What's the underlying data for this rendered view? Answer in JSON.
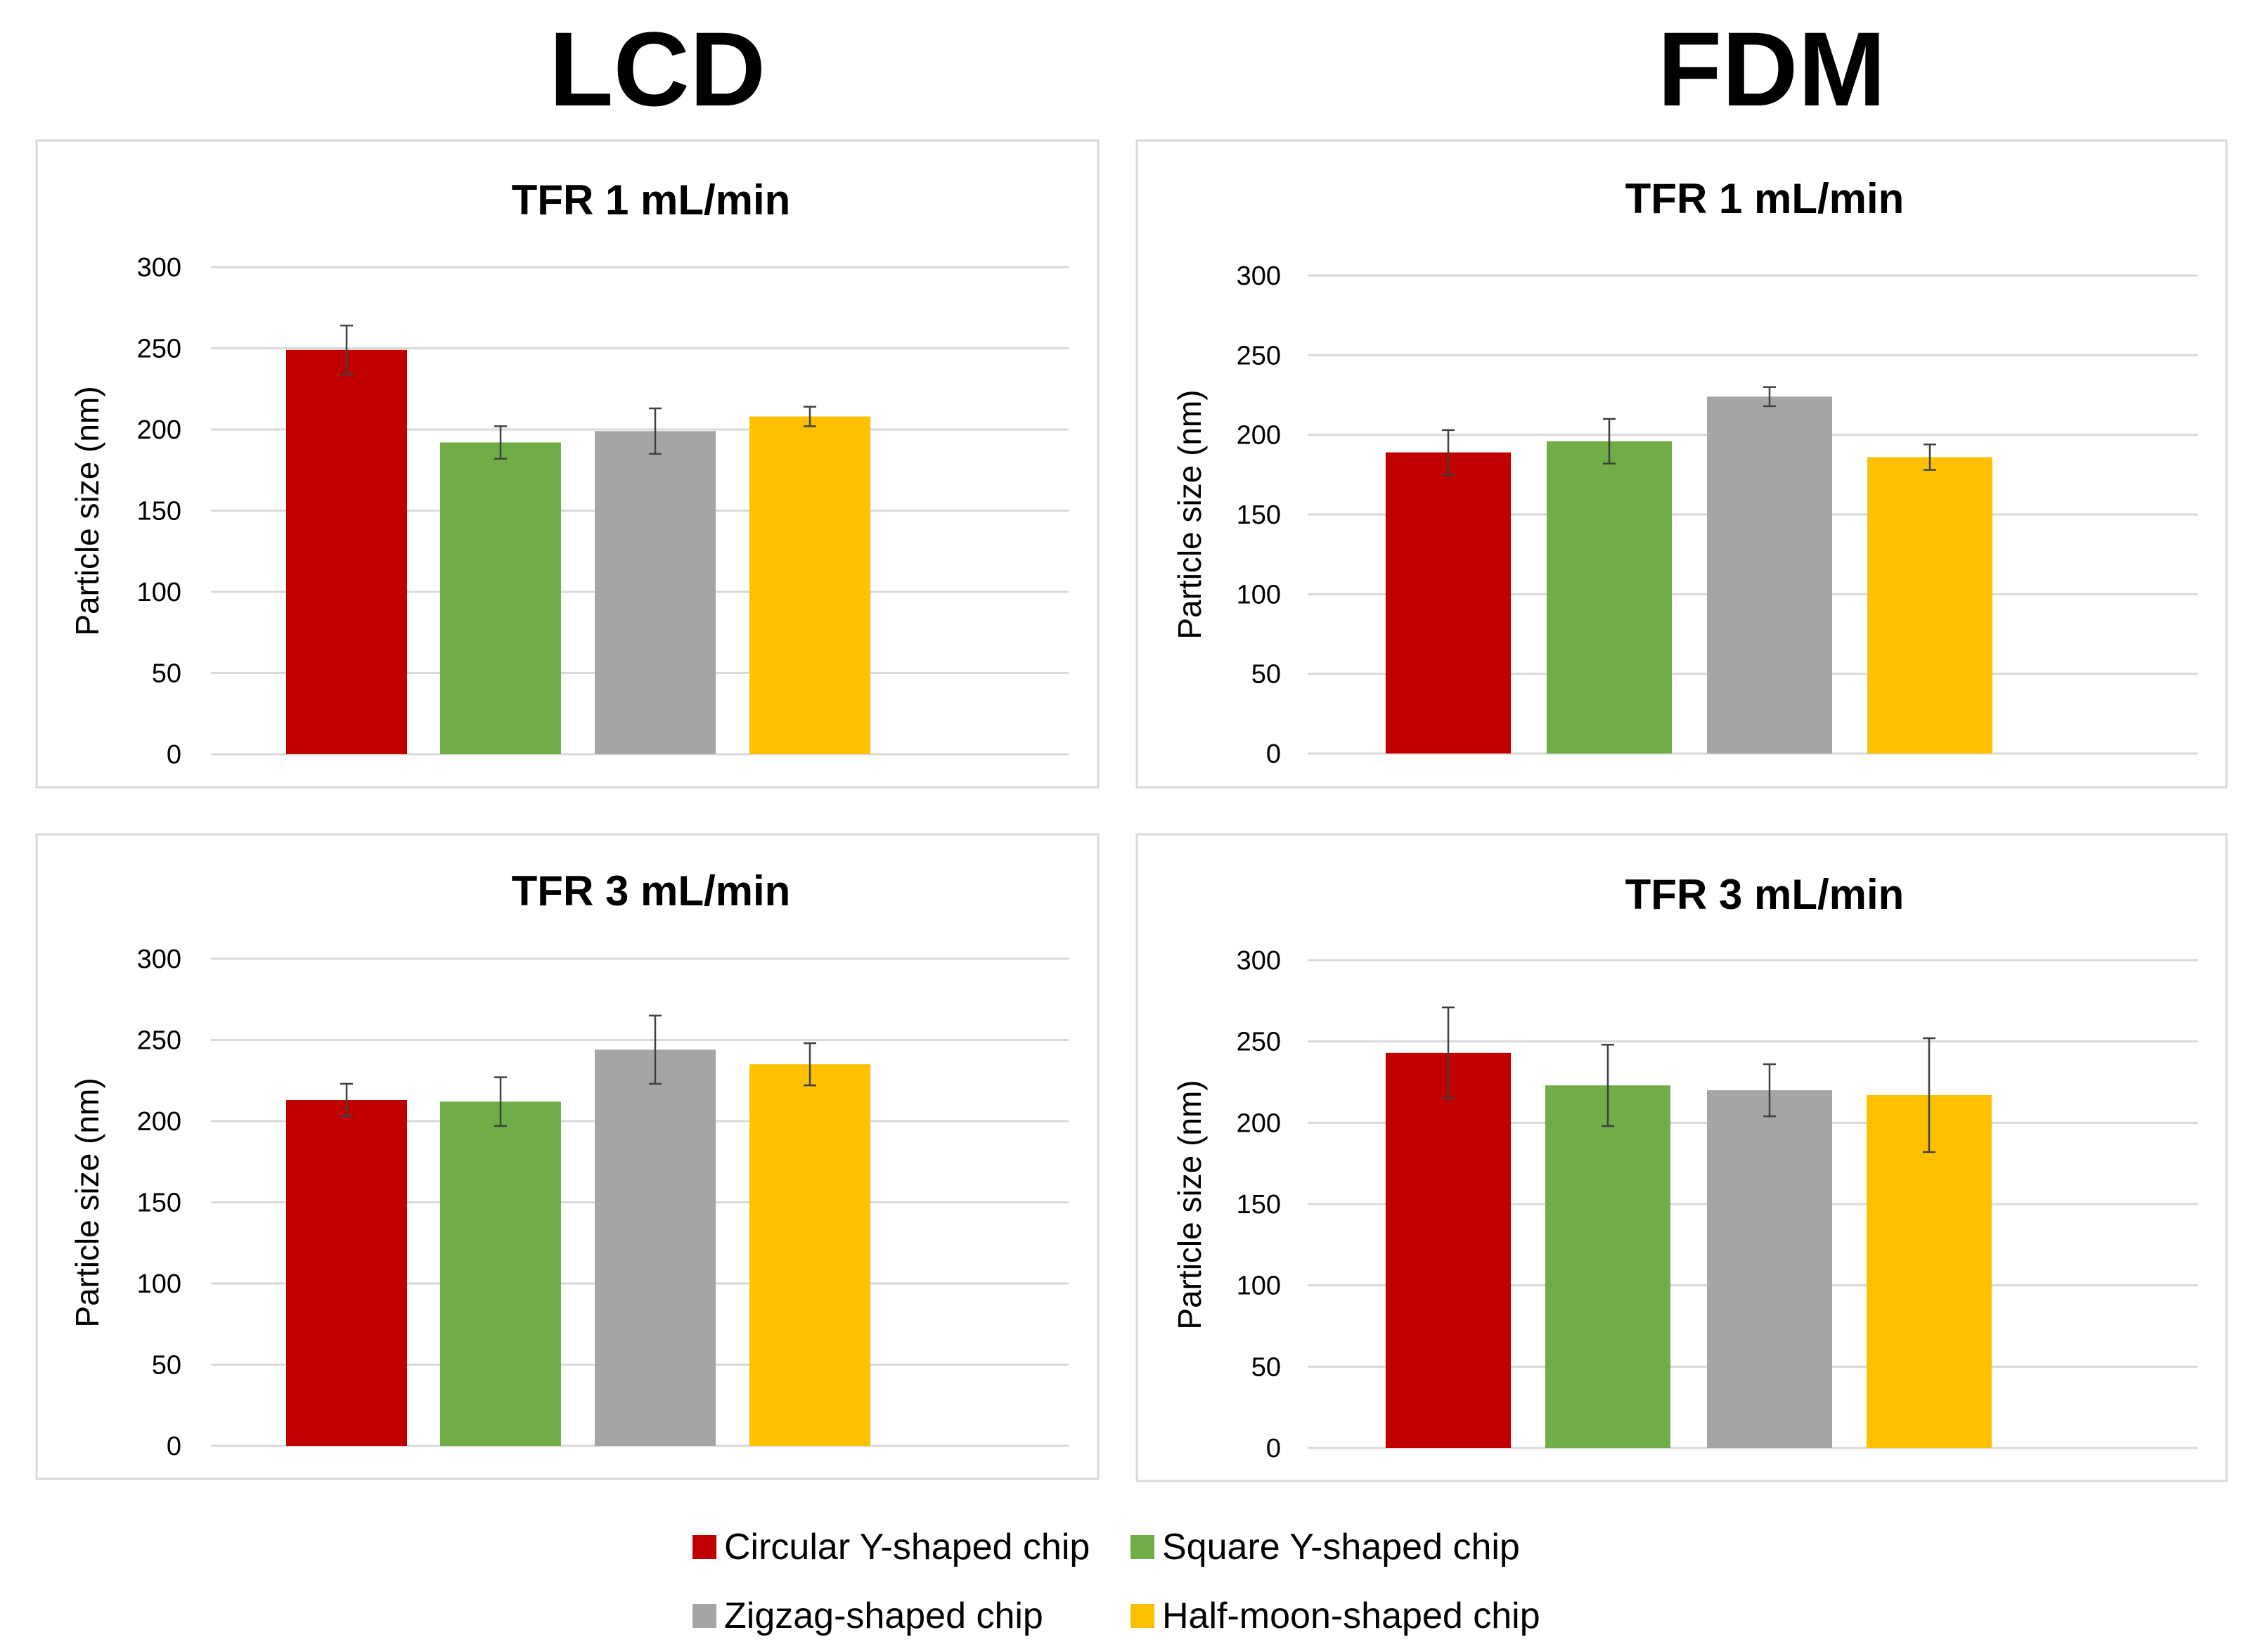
{
  "columns": [
    "LCD",
    "FDM"
  ],
  "legend": [
    {
      "label": "Circular Y-shaped chip",
      "color": "#C00000"
    },
    {
      "label": "Square Y-shaped chip",
      "color": "#70AD47"
    },
    {
      "label": "Zigzag-shaped chip",
      "color": "#A5A5A5"
    },
    {
      "label": "Half-moon-shaped chip",
      "color": "#FFC000"
    }
  ],
  "chart_data": [
    {
      "type": "bar",
      "column": "LCD",
      "title": "TFR 1 mL/min",
      "ylabel": "Particle size (nm)",
      "ylim": [
        0,
        300
      ],
      "yticks": [
        "0",
        "50",
        "100",
        "150",
        "200",
        "250",
        "300"
      ],
      "categories": [
        "Circular Y-shaped chip",
        "Square Y-shaped chip",
        "Zigzag-shaped chip",
        "Half-moon-shaped chip"
      ],
      "values": [
        249,
        192,
        199,
        208
      ],
      "errors": [
        15,
        10,
        14,
        6
      ]
    },
    {
      "type": "bar",
      "column": "FDM",
      "title": "TFR 1 mL/min",
      "ylabel": "Particle size (nm)",
      "ylim": [
        0,
        300
      ],
      "yticks": [
        "0",
        "50",
        "100",
        "150",
        "200",
        "250",
        "300"
      ],
      "categories": [
        "Circular Y-shaped chip",
        "Square Y-shaped chip",
        "Zigzag-shaped chip",
        "Half-moon-shaped chip"
      ],
      "values": [
        189,
        196,
        224,
        186
      ],
      "errors": [
        14,
        14,
        6,
        8
      ]
    },
    {
      "type": "bar",
      "column": "LCD",
      "title": "TFR 3 mL/min",
      "ylabel": "Particle size (nm)",
      "ylim": [
        0,
        300
      ],
      "yticks": [
        "0",
        "50",
        "100",
        "150",
        "200",
        "250",
        "300"
      ],
      "categories": [
        "Circular Y-shaped chip",
        "Square Y-shaped chip",
        "Zigzag-shaped chip",
        "Half-moon-shaped chip"
      ],
      "values": [
        213,
        212,
        244,
        235
      ],
      "errors": [
        10,
        15,
        21,
        13
      ]
    },
    {
      "type": "bar",
      "column": "FDM",
      "title": "TFR 3 mL/min",
      "ylabel": "Particle size (nm)",
      "ylim": [
        0,
        300
      ],
      "yticks": [
        "0",
        "50",
        "100",
        "150",
        "200",
        "250",
        "300"
      ],
      "categories": [
        "Circular Y-shaped chip",
        "Square Y-shaped chip",
        "Zigzag-shaped chip",
        "Half-moon-shaped chip"
      ],
      "values": [
        243,
        223,
        220,
        217
      ],
      "errors": [
        28,
        25,
        16,
        35
      ]
    }
  ]
}
